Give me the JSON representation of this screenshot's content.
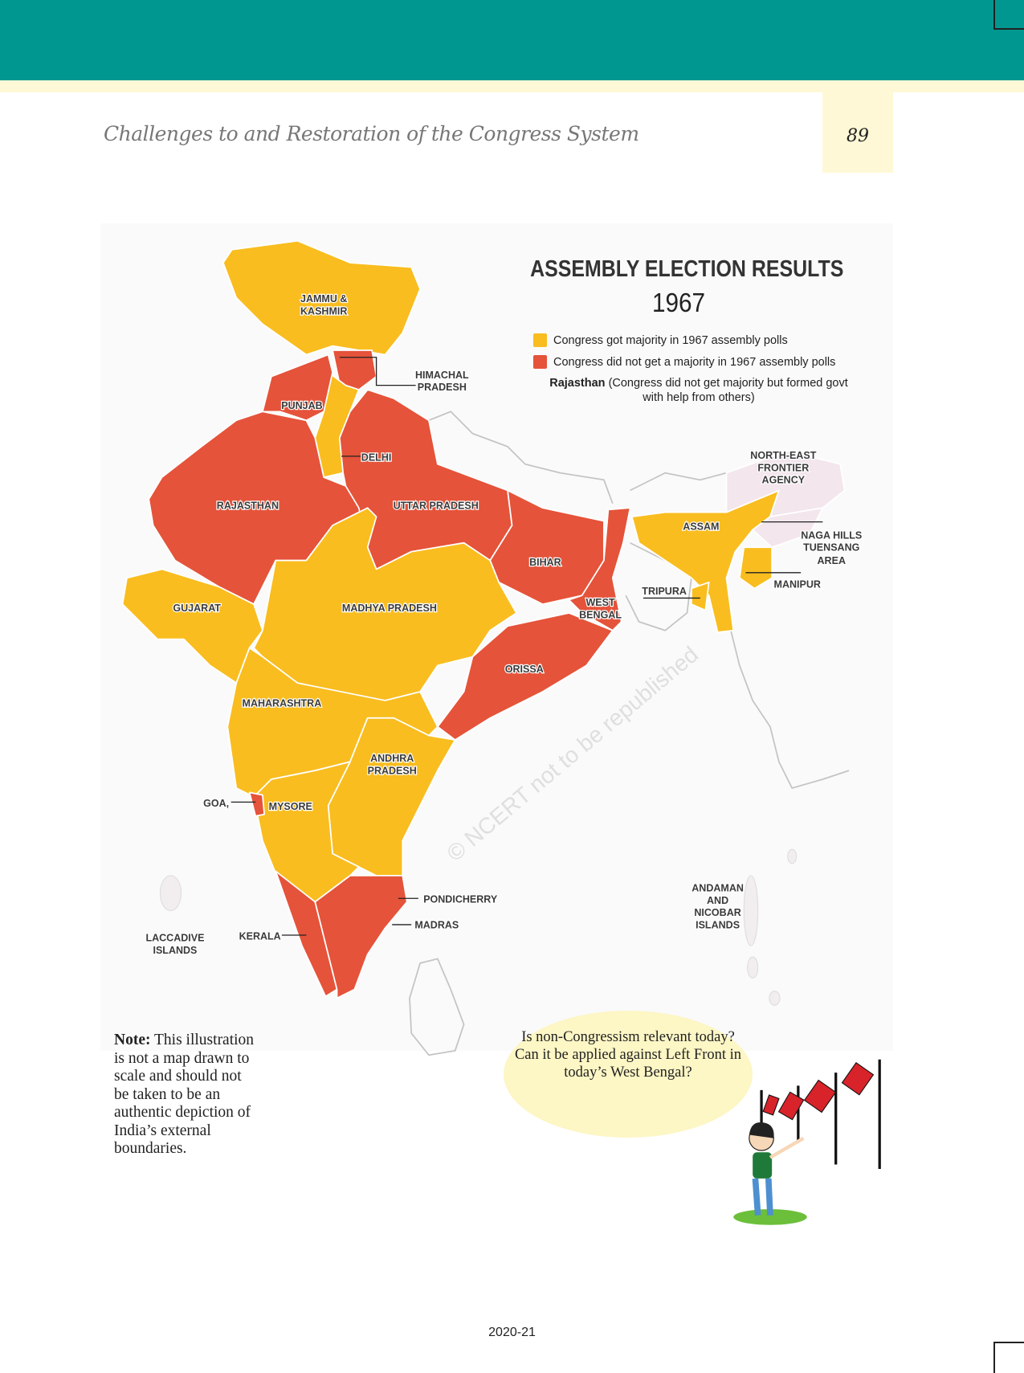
{
  "header": {
    "chapter_title": "Challenges to and Restoration of the Congress System",
    "page_number": "89"
  },
  "map": {
    "title": "ASSEMBLY ELECTION RESULTS",
    "year": "1967",
    "colors": {
      "majority": "#f9bd1f",
      "no_majority": "#e5533a",
      "other": "#f3e6ec",
      "neighbour_outline": "#bdbdbd"
    },
    "legend": [
      {
        "label": "Congress got majority in 1967 assembly polls",
        "color": "#f9bd1f"
      },
      {
        "label": "Congress did not get a majority in 1967 assembly polls",
        "color": "#e5533a"
      }
    ],
    "legend_note": {
      "bold": "Rajasthan",
      "text": "(Congress did not get majority but formed govt with help from others)"
    },
    "labels": {
      "jk": [
        "JAMMU &",
        "KASHMIR"
      ],
      "hp": [
        "HIMACHAL",
        "PRADESH"
      ],
      "punjab": "PUNJAB",
      "delhi": "DELHI",
      "rajasthan": "RAJASTHAN",
      "up": "UTTAR PRADESH",
      "bihar": "BIHAR",
      "wb": [
        "WEST",
        "BENGAL"
      ],
      "orissa": "ORISSA",
      "gujarat": "GUJARAT",
      "mp": "MADHYA PRADESH",
      "maharashtra": "MAHARASHTRA",
      "ap": [
        "ANDHRA",
        "PRADESH"
      ],
      "goa": "GOA,",
      "mysore": "MYSORE",
      "pondicherry": "PONDICHERRY",
      "madras": "MADRAS",
      "kerala": "KERALA",
      "laccadive": [
        "LACCADIVE",
        "ISLANDS"
      ],
      "andaman": [
        "ANDAMAN",
        "AND",
        "NICOBAR",
        "ISLANDS"
      ],
      "assam": "ASSAM",
      "nefa": [
        "NORTH-EAST",
        "FRONTIER",
        "AGENCY"
      ],
      "naga": [
        "NAGA HILLS",
        "TUENSANG",
        "AREA"
      ],
      "manipur": "MANIPUR",
      "tripura": "TRIPURA"
    },
    "watermark": "© NCERT not to be republished"
  },
  "note": {
    "bold": "Note:",
    "text": "This illustration is not a map drawn to scale and should not be taken to be an authentic depiction of India’s external boundaries."
  },
  "bubble": {
    "text": "Is non-Congressism relevant today? Can it be applied against Left Front in today’s West Bengal?"
  },
  "footer": {
    "year": "2020-21"
  }
}
